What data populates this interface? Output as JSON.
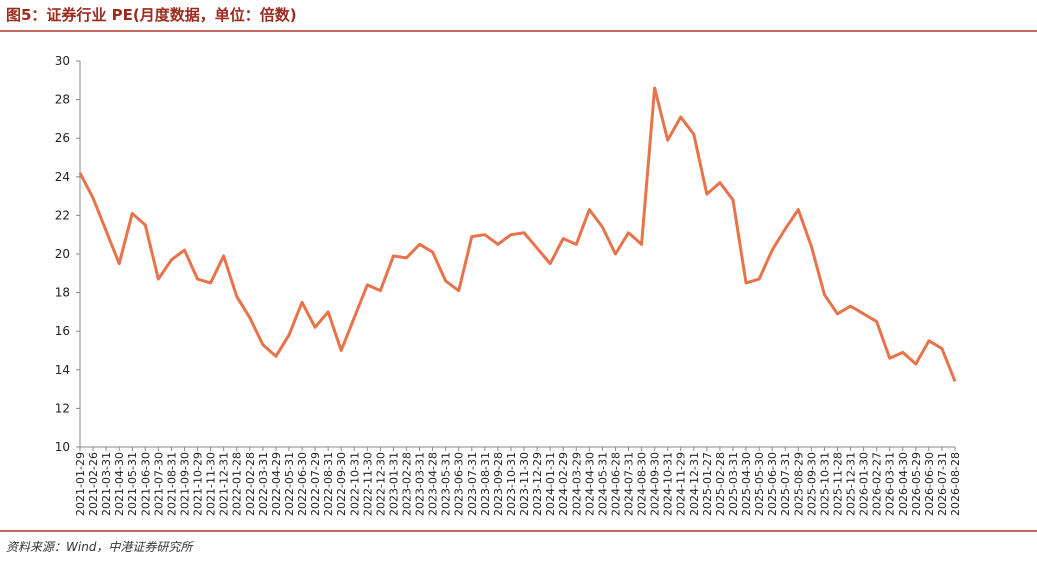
{
  "chart_data": {
    "type": "line",
    "title": "图5：证券行业 PE(月度数据，单位：倍数)",
    "source": "资料来源：Wind，中港证券研究所",
    "categories": [
      "2021-01-29",
      "2021-02-26",
      "2021-03-31",
      "2021-04-30",
      "2021-05-31",
      "2021-06-30",
      "2021-07-30",
      "2021-08-31",
      "2021-09-30",
      "2021-10-29",
      "2021-11-30",
      "2021-12-31",
      "2022-01-28",
      "2022-02-28",
      "2022-03-31",
      "2022-04-29",
      "2022-05-31",
      "2022-06-30",
      "2022-07-29",
      "2022-08-31",
      "2022-09-30",
      "2022-10-31",
      "2022-11-30",
      "2022-12-30",
      "2023-01-31",
      "2023-02-28",
      "2023-03-31",
      "2023-04-28",
      "2023-05-31",
      "2023-06-30",
      "2023-07-31",
      "2023-08-31",
      "2023-09-28",
      "2023-10-31",
      "2023-11-30",
      "2023-12-29",
      "2024-01-31",
      "2024-02-29",
      "2024-03-29",
      "2024-04-30",
      "2024-05-31",
      "2024-06-28",
      "2024-07-31",
      "2024-08-30",
      "2024-09-30",
      "2024-10-31",
      "2024-11-29",
      "2024-12-31",
      "2025-01-27",
      "2025-02-28",
      "2025-03-31",
      "2025-04-30",
      "2025-05-30",
      "2025-06-30",
      "2025-07-31",
      "2025-08-29",
      "2025-09-30",
      "2025-10-31",
      "2025-11-28",
      "2025-12-31",
      "2026-01-30",
      "2026-02-27",
      "2026-03-31",
      "2026-04-30",
      "2026-05-29",
      "2026-06-30",
      "2026-07-31",
      "2026-08-28"
    ],
    "series": [
      {
        "color": "#e8734a",
        "values": [
          24.2,
          22.9,
          21.2,
          19.5,
          22.1,
          21.5,
          18.7,
          19.7,
          20.2,
          18.7,
          18.5,
          19.9,
          17.8,
          16.7,
          15.3,
          14.7,
          15.8,
          17.5,
          16.2,
          17.0,
          15.0,
          16.7,
          18.4,
          18.1,
          19.9,
          19.8,
          20.5,
          20.1,
          18.6,
          18.1,
          20.9,
          21.0,
          20.5,
          21.0,
          21.1,
          20.3,
          19.5,
          20.8,
          20.5,
          22.3,
          21.4,
          20.0,
          21.1,
          20.5,
          28.6,
          25.9,
          27.1,
          26.2,
          23.1,
          23.7,
          22.8,
          18.5,
          18.7,
          20.2,
          21.3,
          22.3,
          20.4,
          17.9,
          16.9,
          17.3,
          16.9,
          16.5,
          14.6,
          14.9,
          14.3,
          15.5,
          15.1,
          13.4
        ]
      }
    ],
    "ylim": [
      10,
      30
    ],
    "yticks": [
      10,
      12,
      14,
      16,
      18,
      20,
      22,
      24,
      26,
      28,
      30
    ]
  }
}
